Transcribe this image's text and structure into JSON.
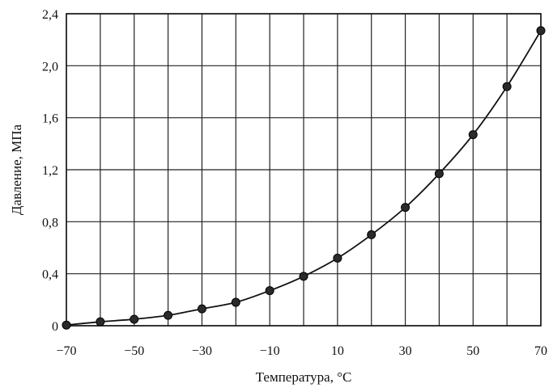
{
  "chart_data": {
    "type": "line",
    "title": "",
    "xlabel": "Температура, °С",
    "ylabel": "Давление, МПа",
    "xlim": [
      -70,
      70
    ],
    "ylim": [
      0,
      2.4
    ],
    "grid": true,
    "legend": "none",
    "x_ticks": [
      -70,
      -60,
      -50,
      -40,
      -30,
      -20,
      -10,
      0,
      10,
      20,
      30,
      40,
      50,
      60,
      70
    ],
    "x_tick_labels": [
      "−70",
      "",
      "−50",
      "",
      "−30",
      "",
      "−10",
      "",
      "10",
      "",
      "30",
      "",
      "50",
      "",
      "70"
    ],
    "y_ticks": [
      0,
      0.4,
      0.8,
      1.2,
      1.6,
      2.0,
      2.4
    ],
    "y_tick_labels": [
      "0",
      "0,4",
      "0,8",
      "1,2",
      "1,6",
      "2,0",
      "2,4"
    ],
    "series": [
      {
        "x": [
          -70,
          -60,
          -50,
          -40,
          -30,
          -20,
          -10,
          0,
          10,
          20,
          30,
          40,
          50,
          60,
          70
        ],
        "y": [
          0.005,
          0.03,
          0.05,
          0.08,
          0.13,
          0.18,
          0.27,
          0.38,
          0.52,
          0.7,
          0.91,
          1.17,
          1.47,
          1.84,
          2.27
        ]
      }
    ]
  }
}
